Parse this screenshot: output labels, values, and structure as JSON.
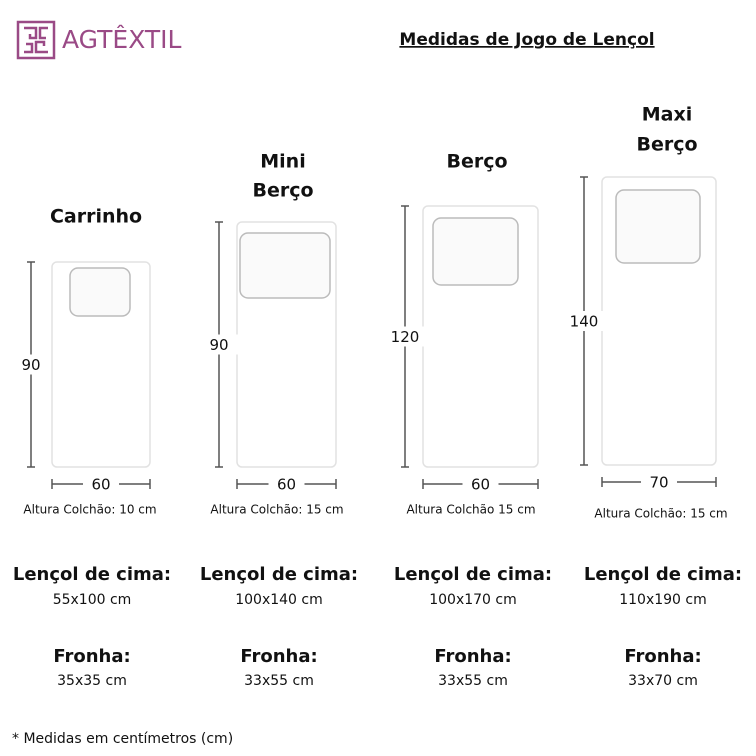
{
  "header": {
    "logo": "AGTÊXTIL",
    "title": "Medidas de Jogo de Lençol"
  },
  "products": [
    {
      "name": [
        "Carrinho"
      ],
      "height": "90",
      "width": "60",
      "mattress": "Altura Colchão: 10 cm",
      "sheet_label": "Lençol de cima:",
      "sheet": "55x100 cm",
      "pillow_label": "Fronha:",
      "pillow": "35x35 cm"
    },
    {
      "name": [
        "Mini",
        "Berço"
      ],
      "height": "90",
      "width": "60",
      "mattress": "Altura Colchão: 15 cm",
      "sheet_label": "Lençol de cima:",
      "sheet": "100x140 cm",
      "pillow_label": "Fronha:",
      "pillow": "33x55 cm"
    },
    {
      "name": [
        "Berço"
      ],
      "height": "120",
      "width": "60",
      "mattress": "Altura Colchão  15 cm",
      "sheet_label": "Lençol de cima:",
      "sheet": "100x170 cm",
      "pillow_label": "Fronha:",
      "pillow": "33x55 cm"
    },
    {
      "name": [
        "Maxi",
        "Berço"
      ],
      "height": "140",
      "width": "70",
      "mattress": "Altura Colchão: 15 cm",
      "sheet_label": "Lençol de cima:",
      "sheet": "110x190 cm",
      "pillow_label": "Fronha:",
      "pillow": "33x70 cm"
    }
  ],
  "footnote": "* Medidas em centímetros (cm)"
}
